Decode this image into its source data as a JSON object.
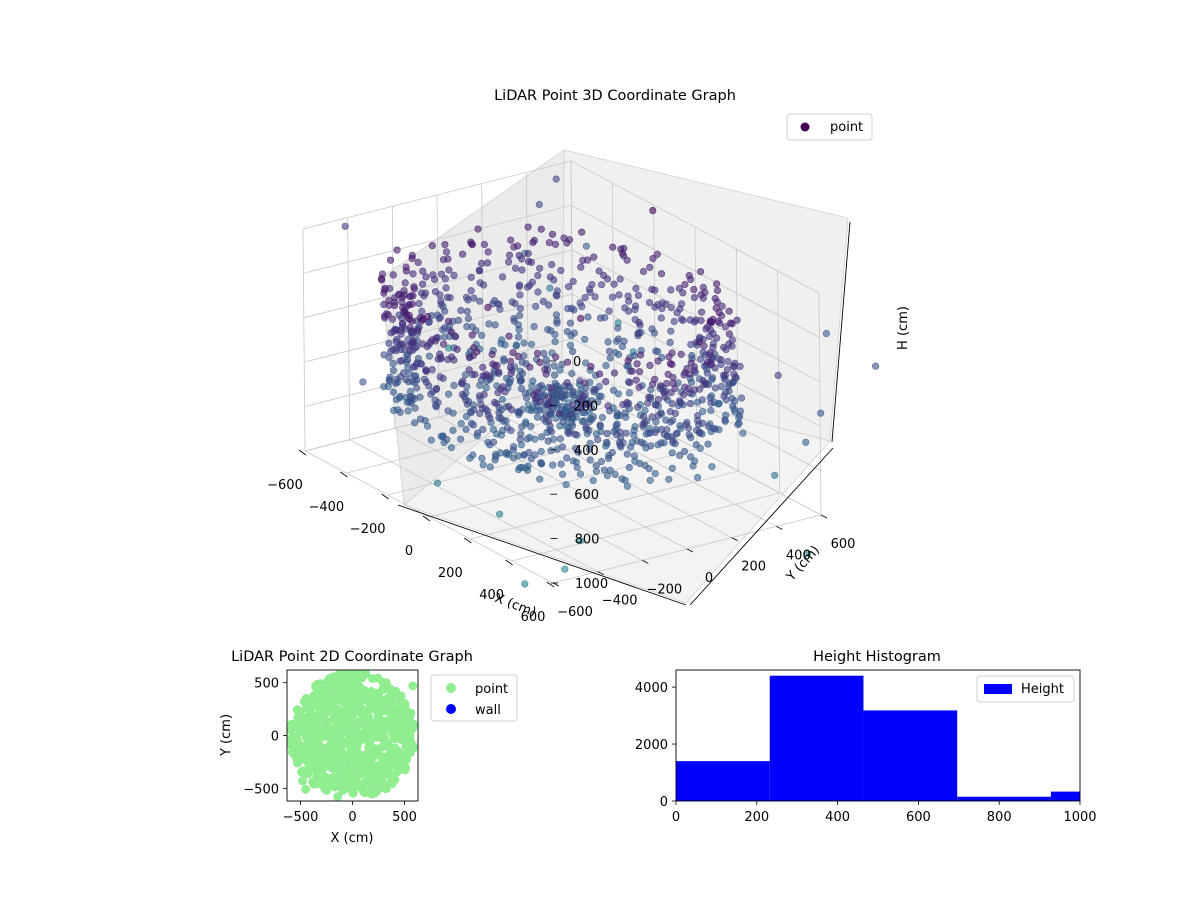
{
  "chart_data": [
    {
      "type": "scatter3d",
      "title": "LiDAR Point 3D Coordinate Graph",
      "xlabel": "X (cm)",
      "ylabel": "Y (cm)",
      "zlabel": "H (cm)",
      "xlim": [
        -600,
        600
      ],
      "ylim": [
        -600,
        600
      ],
      "zlim": [
        0,
        1000
      ],
      "z_inverted": true,
      "x_ticks": [
        -600,
        -400,
        -200,
        0,
        200,
        400,
        600
      ],
      "y_ticks": [
        -600,
        -400,
        -200,
        0,
        200,
        400,
        600
      ],
      "z_ticks": [
        0,
        200,
        400,
        600,
        800,
        1000
      ],
      "legend": [
        {
          "label": "point",
          "color": "#440154"
        }
      ],
      "legend_position": "upper right",
      "colormap": "viridis",
      "grid": true,
      "series": [
        {
          "name": "point",
          "description_points": "dense ring-shaped point shell around the origin (radius about 550 cm, heights 150 to 700 cm) plus scattered outlier points"
        }
      ]
    },
    {
      "type": "scatter",
      "title": "LiDAR Point 2D Coordinate Graph",
      "xlabel": "X (cm)",
      "ylabel": "Y (cm)",
      "xlim": [
        -630,
        630
      ],
      "ylim": [
        -620,
        620
      ],
      "x_ticks": [
        -500,
        0,
        500
      ],
      "y_ticks": [
        -500,
        0,
        500
      ],
      "legend": [
        {
          "label": "point",
          "color": "#90EE90"
        },
        {
          "label": "wall",
          "color": "#0000FF"
        }
      ],
      "legend_position": "outside right",
      "series": [
        {
          "name": "point",
          "color": "#90EE90",
          "description_points": "filled disc of points, radius about 600 cm, centred at origin"
        },
        {
          "name": "wall",
          "color": "#0000FF",
          "values": []
        }
      ]
    },
    {
      "type": "histogram",
      "title": "Height Histogram",
      "legend": [
        {
          "label": "Height",
          "color": "#0000FF"
        }
      ],
      "legend_position": "upper right",
      "xlim": [
        0,
        1000
      ],
      "ylim": [
        0,
        4600
      ],
      "x_ticks": [
        0,
        200,
        400,
        600,
        800,
        1000
      ],
      "y_ticks": [
        0,
        2000,
        4000
      ],
      "bin_edges": [
        0,
        232,
        464,
        696,
        928,
        1160
      ],
      "values": [
        1400,
        4400,
        3180,
        150,
        330
      ],
      "color": "#0000FF"
    }
  ]
}
